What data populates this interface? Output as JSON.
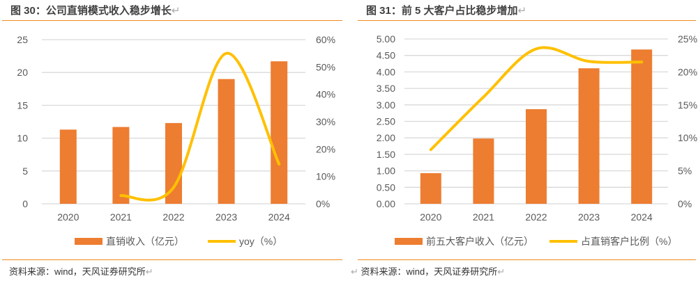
{
  "left": {
    "title": "图 30：公司直销模式收入稳步增长",
    "source": "资料来源：wind，天风证券研究所"
  },
  "right": {
    "title": "图 31：前 5 大客户占比稳步增加",
    "source": "资料来源：wind，天风证券研究所"
  },
  "colors": {
    "bar": "#ed7d31",
    "line": "#ffc000",
    "grid": "#d9d9d9",
    "rule": "#f08a1c"
  },
  "chart_data": [
    {
      "type": "bar+line",
      "categories": [
        "2020",
        "2021",
        "2022",
        "2023",
        "2024"
      ],
      "series": [
        {
          "name": "直销收入（亿元）",
          "type": "bar",
          "axis": "left",
          "values": [
            11.3,
            11.7,
            12.3,
            19.0,
            21.7
          ]
        },
        {
          "name": "yoy（%）",
          "type": "line",
          "axis": "right",
          "x": [
            "2021",
            "2022",
            "2023",
            "2024"
          ],
          "values": [
            3,
            6,
            55,
            14.5
          ]
        }
      ],
      "ylim": [
        0,
        25
      ],
      "yticks": [
        "0",
        "5",
        "10",
        "15",
        "20",
        "25"
      ],
      "y2lim": [
        0,
        60
      ],
      "y2ticks": [
        "0%",
        "10%",
        "20%",
        "30%",
        "40%",
        "50%",
        "60%"
      ],
      "legend": "bottom",
      "grid": true
    },
    {
      "type": "bar+line",
      "categories": [
        "2020",
        "2021",
        "2022",
        "2023",
        "2024"
      ],
      "series": [
        {
          "name": "前五大客户收入（亿元）",
          "type": "bar",
          "axis": "left",
          "values": [
            0.93,
            1.98,
            2.87,
            4.11,
            4.68
          ]
        },
        {
          "name": "占直销客户比例（%）",
          "type": "line",
          "axis": "right",
          "x": [
            "2020",
            "2021",
            "2022",
            "2023",
            "2024"
          ],
          "values": [
            8.2,
            16.2,
            23.5,
            21.6,
            21.5
          ]
        }
      ],
      "ylim": [
        0,
        5
      ],
      "yticks": [
        "0.00",
        "0.50",
        "1.00",
        "1.50",
        "2.00",
        "2.50",
        "3.00",
        "3.50",
        "4.00",
        "4.50",
        "5.00"
      ],
      "y2lim": [
        0,
        25
      ],
      "y2ticks": [
        "0%",
        "5%",
        "10%",
        "15%",
        "20%",
        "25%"
      ],
      "legend": "bottom",
      "grid": true
    }
  ]
}
